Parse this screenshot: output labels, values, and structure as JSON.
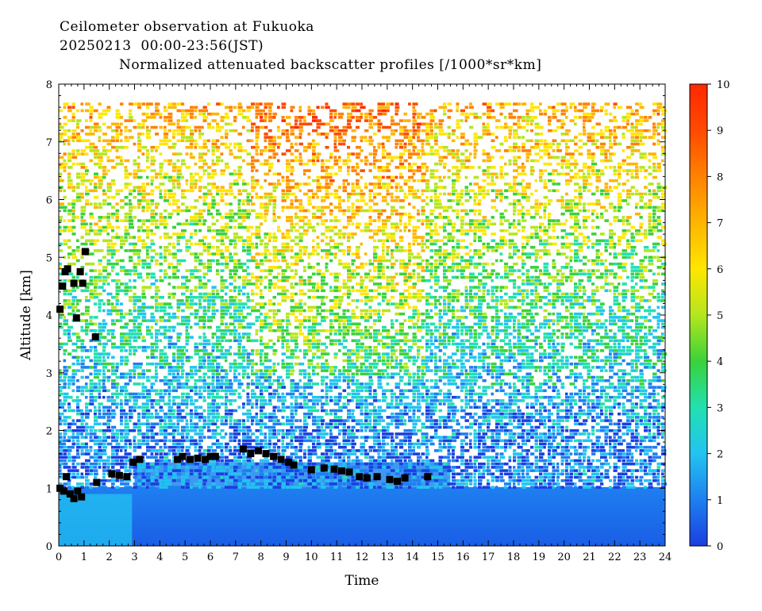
{
  "chart_data": {
    "type": "heatmap",
    "title_lines": [
      "Ceilometer observation at Fukuoka",
      "20250213  00:00-23:56(JST)",
      "Normalized attenuated backscatter profiles [/1000*sr*km]"
    ],
    "xlabel": "Time",
    "ylabel": "Altitude [km]",
    "xlim": [
      0,
      24
    ],
    "ylim": [
      0,
      8
    ],
    "x_ticks": [
      "0",
      "1",
      "2",
      "3",
      "4",
      "5",
      "6",
      "7",
      "8",
      "9",
      "10",
      "11",
      "12",
      "13",
      "14",
      "15",
      "16",
      "17",
      "18",
      "19",
      "20",
      "21",
      "22",
      "23",
      "24"
    ],
    "y_ticks": [
      "0",
      "1",
      "2",
      "3",
      "4",
      "5",
      "6",
      "7",
      "8"
    ],
    "colorbar": {
      "range": [
        0,
        10
      ],
      "ticks": [
        "0",
        "1",
        "2",
        "3",
        "4",
        "5",
        "6",
        "7",
        "8",
        "9",
        "10"
      ],
      "colors": [
        "#1a3fe0",
        "#1e7ff0",
        "#22c4f0",
        "#22e0b0",
        "#3ad23a",
        "#b4e61e",
        "#ffe600",
        "#ffb400",
        "#ff8200",
        "#ff4a00",
        "#ff2800"
      ]
    },
    "cloud_base_detections": [
      {
        "time": 0.05,
        "altitude": 1.0
      },
      {
        "time": 0.2,
        "altitude": 0.95
      },
      {
        "time": 0.3,
        "altitude": 1.2
      },
      {
        "time": 0.45,
        "altitude": 0.9
      },
      {
        "time": 0.6,
        "altitude": 0.82
      },
      {
        "time": 0.75,
        "altitude": 0.95
      },
      {
        "time": 0.9,
        "altitude": 0.85
      },
      {
        "time": 0.05,
        "altitude": 4.1
      },
      {
        "time": 0.15,
        "altitude": 4.5
      },
      {
        "time": 0.25,
        "altitude": 4.75
      },
      {
        "time": 0.35,
        "altitude": 4.8
      },
      {
        "time": 0.6,
        "altitude": 4.55
      },
      {
        "time": 0.7,
        "altitude": 3.95
      },
      {
        "time": 0.85,
        "altitude": 4.75
      },
      {
        "time": 0.95,
        "altitude": 4.55
      },
      {
        "time": 1.05,
        "altitude": 5.1
      },
      {
        "time": 1.45,
        "altitude": 3.62
      },
      {
        "time": 1.5,
        "altitude": 1.1
      },
      {
        "time": 2.1,
        "altitude": 1.25
      },
      {
        "time": 2.4,
        "altitude": 1.22
      },
      {
        "time": 2.7,
        "altitude": 1.2
      },
      {
        "time": 2.95,
        "altitude": 1.45
      },
      {
        "time": 3.2,
        "altitude": 1.5
      },
      {
        "time": 4.7,
        "altitude": 1.5
      },
      {
        "time": 4.9,
        "altitude": 1.55
      },
      {
        "time": 5.2,
        "altitude": 1.5
      },
      {
        "time": 5.5,
        "altitude": 1.52
      },
      {
        "time": 5.8,
        "altitude": 1.5
      },
      {
        "time": 6.0,
        "altitude": 1.55
      },
      {
        "time": 6.2,
        "altitude": 1.55
      },
      {
        "time": 7.3,
        "altitude": 1.68
      },
      {
        "time": 7.6,
        "altitude": 1.6
      },
      {
        "time": 7.9,
        "altitude": 1.65
      },
      {
        "time": 8.2,
        "altitude": 1.6
      },
      {
        "time": 8.5,
        "altitude": 1.55
      },
      {
        "time": 8.8,
        "altitude": 1.5
      },
      {
        "time": 9.1,
        "altitude": 1.45
      },
      {
        "time": 9.3,
        "altitude": 1.4
      },
      {
        "time": 10.0,
        "altitude": 1.32
      },
      {
        "time": 10.5,
        "altitude": 1.35
      },
      {
        "time": 10.9,
        "altitude": 1.33
      },
      {
        "time": 11.2,
        "altitude": 1.3
      },
      {
        "time": 11.5,
        "altitude": 1.28
      },
      {
        "time": 11.9,
        "altitude": 1.2
      },
      {
        "time": 12.2,
        "altitude": 1.18
      },
      {
        "time": 12.6,
        "altitude": 1.2
      },
      {
        "time": 13.1,
        "altitude": 1.15
      },
      {
        "time": 13.4,
        "altitude": 1.12
      },
      {
        "time": 13.7,
        "altitude": 1.18
      },
      {
        "time": 14.6,
        "altitude": 1.2
      }
    ]
  }
}
